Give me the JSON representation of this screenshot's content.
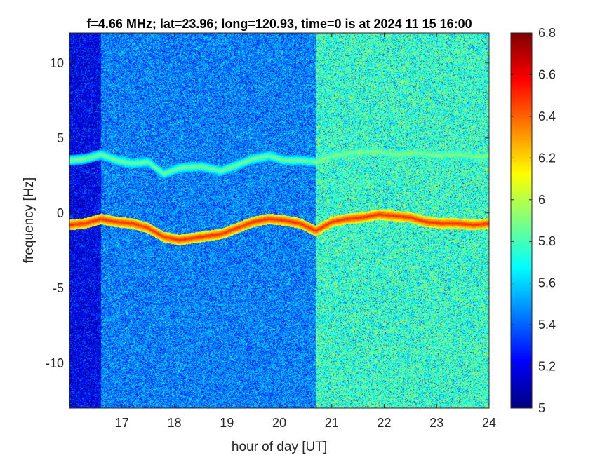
{
  "chart_data": {
    "type": "heatmap",
    "title": "f=4.66 MHz;  lat=23.96; long=120.93, time=0 is at 2024 11 15 16:00",
    "xlabel": "hour of day [UT]",
    "ylabel": "frequency [Hz]",
    "xlim": [
      16,
      24
    ],
    "ylim": [
      -13,
      12
    ],
    "x_ticks": [
      17,
      18,
      19,
      20,
      21,
      22,
      23,
      24
    ],
    "x_tick_labels": [
      "17",
      "18",
      "19",
      "20",
      "21",
      "22",
      "23",
      "24"
    ],
    "y_ticks": [
      10,
      5,
      0,
      -5,
      -10
    ],
    "y_tick_labels": [
      "10",
      "5",
      "0",
      "-5",
      "-10"
    ],
    "colorbar": {
      "colormap": "jet",
      "clim": [
        5,
        6.8
      ],
      "ticks": [
        6.8,
        6.6,
        6.4,
        6.2,
        6,
        5.8,
        5.6,
        5.4,
        5.2,
        5
      ],
      "tick_labels": [
        "6.8",
        "6.6",
        "6.4",
        "6.2",
        "6",
        "5.8",
        "5.6",
        "5.4",
        "5.2",
        "5"
      ]
    },
    "background_level": [
      {
        "hour_start": 16.0,
        "hour_end": 16.6,
        "level": 5.2
      },
      {
        "hour_start": 16.6,
        "hour_end": 20.7,
        "level": 5.45
      },
      {
        "hour_start": 20.7,
        "hour_end": 24.0,
        "level": 5.75
      }
    ],
    "traces": [
      {
        "hours": [
          16.0,
          16.3,
          16.6,
          16.9,
          17.2,
          17.5,
          17.8,
          18.1,
          18.5,
          18.9,
          19.2,
          19.5,
          19.8,
          20.1,
          20.4,
          20.7,
          21.0,
          21.3,
          21.6,
          21.9,
          22.2,
          22.5,
          22.8,
          23.1,
          23.4,
          23.7,
          24.0
        ],
        "freq_hz": [
          -0.8,
          -0.7,
          -0.4,
          -0.6,
          -0.7,
          -1.0,
          -1.6,
          -1.8,
          -1.6,
          -1.4,
          -1.0,
          -0.6,
          -0.4,
          -0.5,
          -0.7,
          -1.2,
          -0.6,
          -0.4,
          -0.3,
          -0.1,
          -0.2,
          -0.3,
          -0.6,
          -0.7,
          -0.7,
          -0.8,
          -0.7
        ],
        "level": 6.5
      },
      {
        "hours": [
          16.0,
          16.3,
          16.6,
          16.9,
          17.2,
          17.5,
          17.8,
          18.1,
          18.5,
          18.9,
          19.2,
          19.5,
          19.8,
          20.1,
          20.4,
          20.7,
          21.0,
          21.4,
          21.8,
          22.2,
          22.6,
          23.0,
          23.4,
          23.8,
          24.0
        ],
        "freq_hz": [
          3.5,
          3.6,
          3.9,
          3.5,
          3.3,
          3.4,
          2.6,
          3.0,
          3.1,
          2.8,
          3.2,
          3.6,
          3.8,
          3.5,
          3.5,
          3.4,
          3.8,
          4.0,
          4.1,
          3.9,
          4.0,
          3.8,
          3.9,
          3.7,
          3.8
        ],
        "level": 5.9
      }
    ]
  }
}
